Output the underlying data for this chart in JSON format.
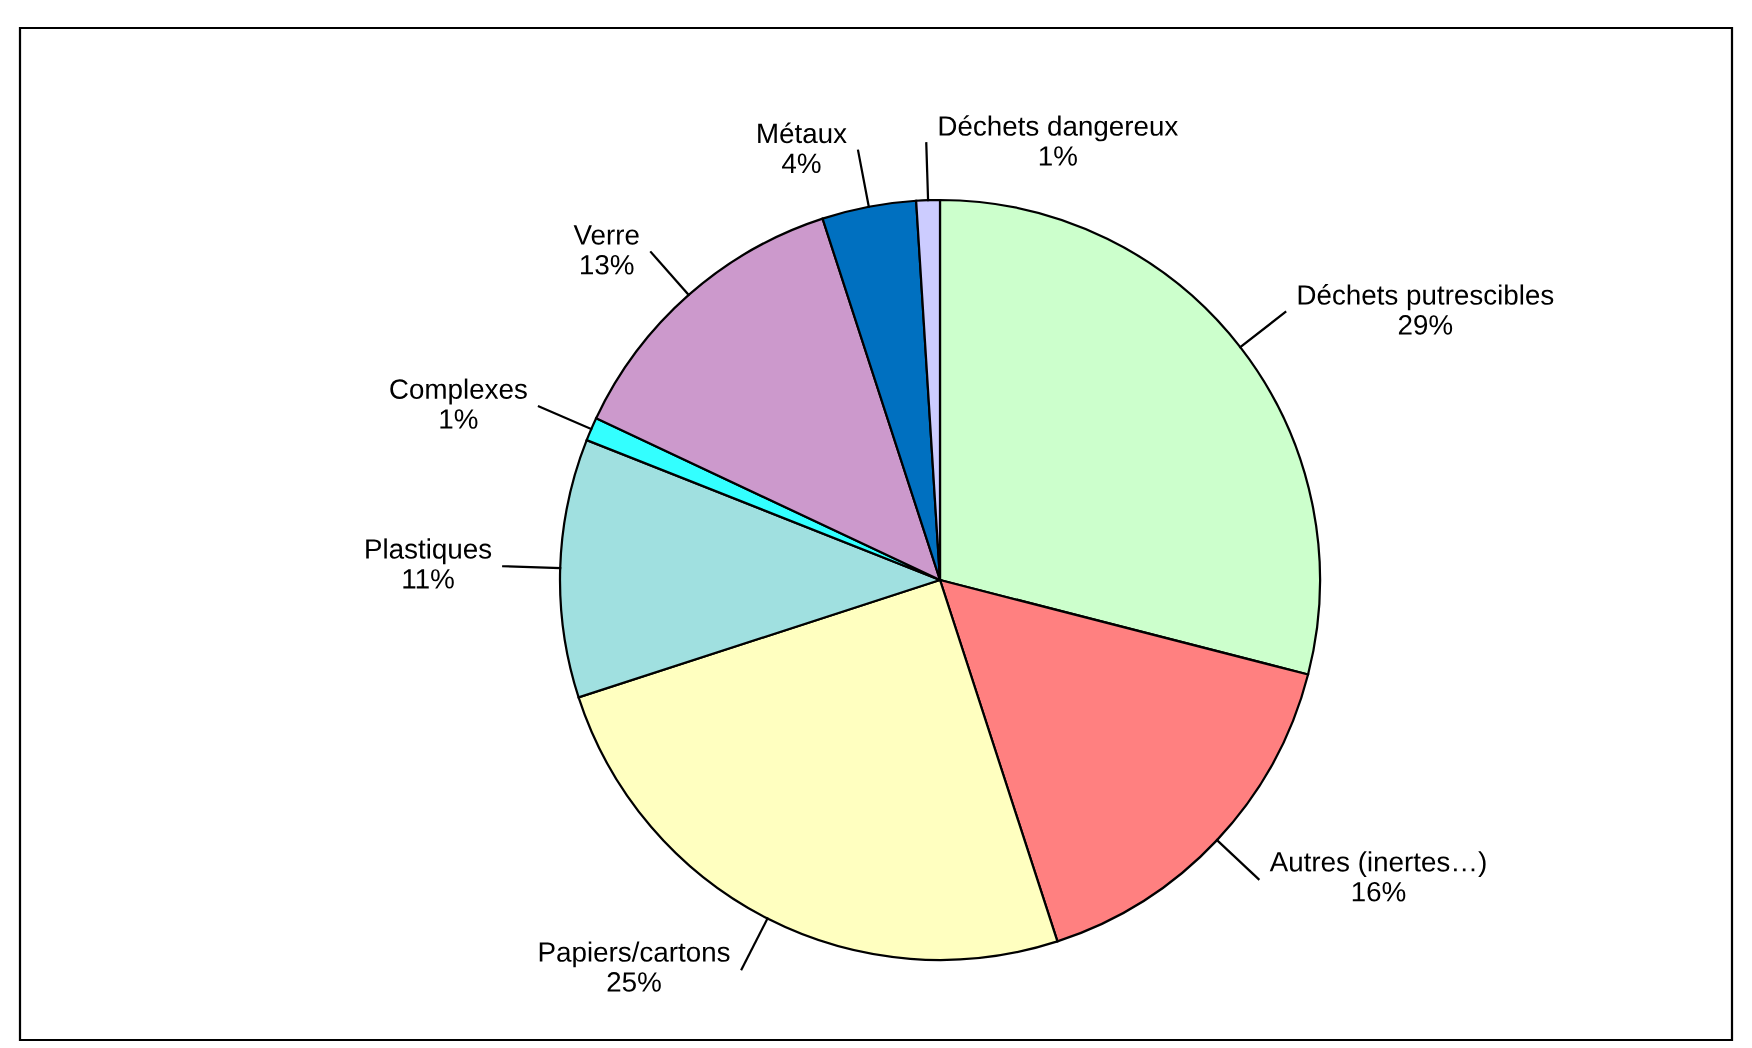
{
  "chart_data": {
    "type": "pie",
    "categories": [
      "Déchets putrescibles",
      "Autres (inertes…)",
      "Papiers/cartons",
      "Plastiques",
      "Complexes",
      "Verre",
      "Métaux",
      "Déchets dangereux"
    ],
    "values": [
      29,
      16,
      25,
      11,
      1,
      13,
      4,
      1
    ],
    "colors": [
      "#ccffcc",
      "#ff8080",
      "#ffffc0",
      "#a0e0e0",
      "#33ffff",
      "#cc99cc",
      "#0070c0",
      "#ccccff"
    ],
    "value_labels": [
      "29%",
      "16%",
      "25%",
      "11%",
      "1%",
      "13%",
      "4%",
      "1%"
    ],
    "legend": false
  }
}
